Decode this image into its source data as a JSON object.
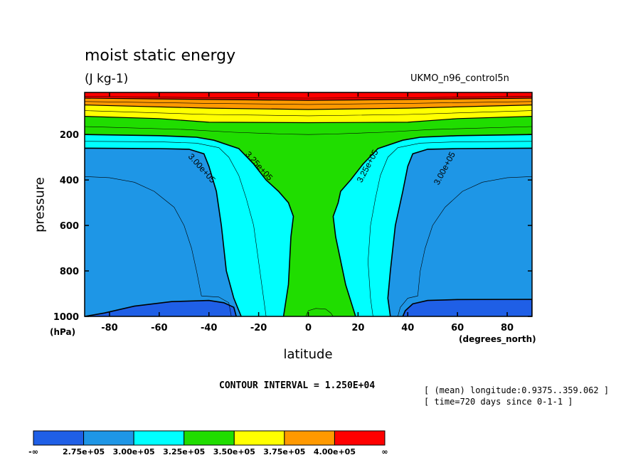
{
  "header": {
    "title": "moist static energy",
    "units": "(J kg-1)",
    "run_id": "UKMO_n96_control5n"
  },
  "axes": {
    "ylabel": "pressure",
    "yunit": "(hPa)",
    "xlabel": "latitude",
    "xunit": "(degrees_north)"
  },
  "footer": {
    "contour_interval": "CONTOUR INTERVAL = 1.250E+04",
    "meta_line1": "[ (mean) longitude:0.9375..359.062 ]",
    "meta_line2": "[ time=720 days since 0-1-1 ]"
  },
  "chart_data": {
    "type": "heatmap",
    "title": "moist static energy",
    "subtitle": "(J kg-1)",
    "xlabel": "latitude",
    "ylabel": "pressure",
    "x_unit": "(degrees_north)",
    "y_unit": "(hPa)",
    "xlim": [
      -90,
      90
    ],
    "ylim": [
      1000,
      15
    ],
    "x_ticks": [
      -80,
      -60,
      -40,
      -20,
      0,
      20,
      40,
      60,
      80
    ],
    "y_ticks": [
      200,
      400,
      600,
      800,
      1000
    ],
    "contour_interval": 12500,
    "levels": [
      275000,
      300000,
      325000,
      350000,
      375000,
      400000
    ],
    "colorbar": {
      "colors": [
        "#1f5fe6",
        "#1e96e6",
        "#00ffff",
        "#20dd00",
        "#ffff00",
        "#ff9900",
        "#ff0000"
      ],
      "labels": [
        "-∞",
        "2.75e+05",
        "3.00e+05",
        "3.25e+05",
        "3.50e+05",
        "3.75e+05",
        "4.00e+05",
        "∞"
      ]
    },
    "contour_labels": [
      {
        "text": "3.00e+05",
        "lat": -43,
        "p": 350
      },
      {
        "text": "3.25e+05",
        "lat": -20,
        "p": 340
      },
      {
        "text": "3.25e+05",
        "lat": 24,
        "p": 340
      },
      {
        "text": "3.00e+05",
        "lat": 55,
        "p": 350
      }
    ],
    "regions": [
      {
        "value_range": "> 4.00e+05",
        "band": "top of atmosphere, ~15–40 hPa"
      },
      {
        "value_range": "3.50e+05 – 4.00e+05",
        "band": "~40–120 hPa"
      },
      {
        "value_range": "3.25e+05 – 3.50e+05",
        "band": "tropical column 20S–20N from 1000 hPa; ~120–200 hPa everywhere"
      },
      {
        "value_range": "3.00e+05 – 3.25e+05",
        "band": "subtropics ~20–40 deg, and ~200–260 hPa at high latitudes"
      },
      {
        "value_range": "2.75e+05 – 3.00e+05",
        "band": "mid/high latitudes 260–930 hPa"
      },
      {
        "value_range": "< 2.75e+05",
        "band": "polar surface near 930–1000 hPa poleward of ~50 deg"
      }
    ]
  }
}
